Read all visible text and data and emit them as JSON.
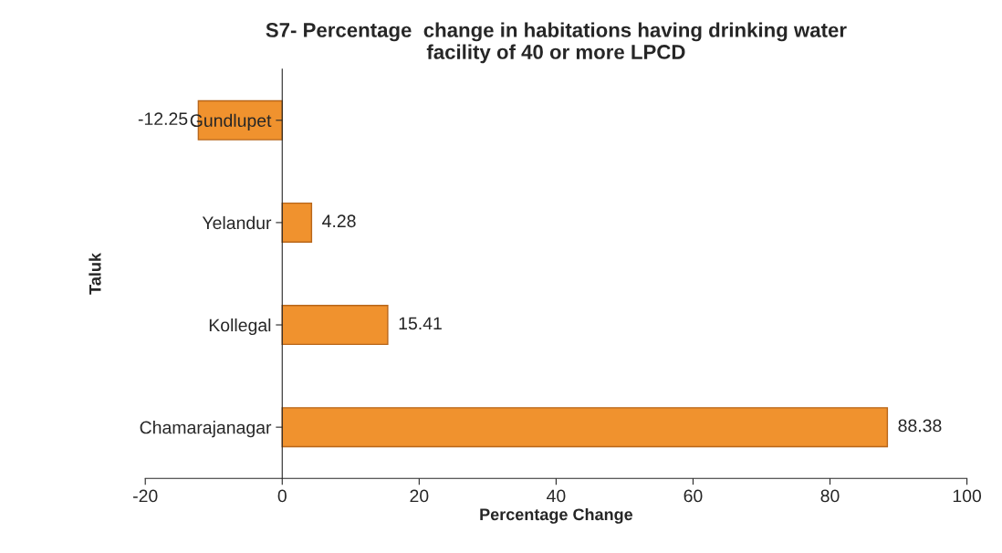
{
  "chart_data": {
    "type": "bar",
    "orientation": "horizontal",
    "title": "S7- Percentage  change in habitations having drinking water\nfacility of 40 or more LPCD",
    "xlabel": "Percentage Change",
    "ylabel": "Taluk",
    "categories": [
      "Gundlupet",
      "Yelandur",
      "Kollegal",
      "Chamarajanagar"
    ],
    "values": [
      -12.25,
      4.28,
      15.41,
      88.38
    ],
    "color": "#f0922e",
    "xlim": [
      -20,
      100
    ],
    "xticks": [
      -20,
      0,
      20,
      40,
      60,
      80,
      100
    ],
    "data_labels": true,
    "grid": false,
    "legend": false
  }
}
